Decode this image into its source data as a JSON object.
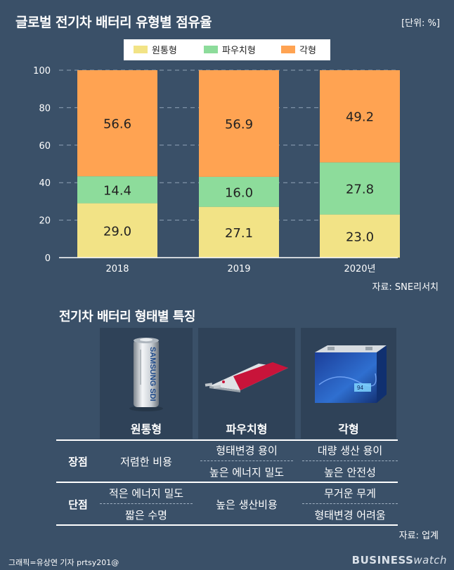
{
  "header": {
    "title": "글로벌 전기차 배터리 유형별 점유율",
    "unit": "[단위: %]",
    "source": "자료: SNE리서치"
  },
  "colors": {
    "background": "#3a5068",
    "cylindrical": "#f2e386",
    "pouch": "#8ddc9b",
    "prismatic": "#ffa352",
    "grid": "#8fa2b5"
  },
  "chart_data": {
    "type": "bar",
    "stacked": true,
    "categories": [
      "2018",
      "2019",
      "2020년"
    ],
    "series": [
      {
        "name": "원통형",
        "values": [
          29.0,
          27.1,
          23.0
        ],
        "color": "#f2e386"
      },
      {
        "name": "파우치형",
        "values": [
          14.4,
          16.0,
          27.8
        ],
        "color": "#8ddc9b"
      },
      {
        "name": "각형",
        "values": [
          56.6,
          56.9,
          49.2
        ],
        "color": "#ffa352"
      }
    ],
    "value_labels": [
      [
        "29.0",
        "27.1",
        "23.0"
      ],
      [
        "14.4",
        "16.0",
        "27.8"
      ],
      [
        "56.6",
        "56.9",
        "49.2"
      ]
    ],
    "yticks": [
      "0",
      "20",
      "40",
      "60",
      "80",
      "100"
    ],
    "ylim": [
      0,
      100
    ],
    "grid": true,
    "legend_position": "top-center"
  },
  "comparison": {
    "title": "전기차 배터리 형태별 특징",
    "types": [
      "원통형",
      "파우치형",
      "각형"
    ],
    "brand_text": "SAMSUNG SDI",
    "battery_badge": "94",
    "rows": {
      "advantages": {
        "label": "장점",
        "cylindrical": "저렴한 비용",
        "pouch": [
          "형태변경 용이",
          "높은 에너지 밀도"
        ],
        "prismatic": [
          "대량 생산 용이",
          "높은 안전성"
        ]
      },
      "disadvantages": {
        "label": "단점",
        "cylindrical": [
          "적은 에너지 밀도",
          "짧은 수명"
        ],
        "pouch": "높은 생산비용",
        "prismatic": [
          "무거운 무게",
          "형태변경 어려움"
        ]
      }
    },
    "source": "자료: 업계"
  },
  "footer": {
    "credit": "그래픽=유상연 기자 prtsy201@",
    "logo_main": "BUSINESS",
    "logo_sub": "watch"
  }
}
